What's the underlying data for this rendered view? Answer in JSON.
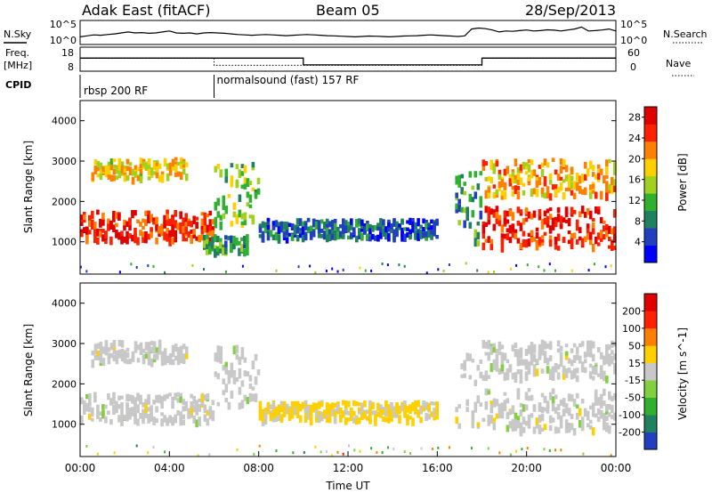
{
  "header": {
    "station": "Adak East (fitACF)",
    "beam": "Beam 05",
    "date": "28/Sep/2013"
  },
  "noise_panel": {
    "left_label": "N.Sky",
    "left_ticks": [
      "10^5",
      "10^0"
    ],
    "right_ticks": [
      "10^5",
      "10^0"
    ],
    "right_label": "N.Search",
    "sky_trace": [
      0.3,
      0.35,
      0.4,
      0.38,
      0.42,
      0.45,
      0.5,
      0.55,
      0.5,
      0.52,
      0.48,
      0.5,
      0.55,
      0.6,
      0.5,
      0.48,
      0.5,
      0.45,
      0.5,
      0.52,
      0.5,
      0.48,
      0.45,
      0.42,
      0.4,
      0.38,
      0.4,
      0.42,
      0.4,
      0.38,
      0.36,
      0.38,
      0.4,
      0.42,
      0.4,
      0.38,
      0.36,
      0.35,
      0.33,
      0.32,
      0.3,
      0.32,
      0.34,
      0.33,
      0.32,
      0.3,
      0.32,
      0.34,
      0.35,
      0.36,
      0.38,
      0.4,
      0.38,
      0.36,
      0.34,
      0.32,
      0.35,
      0.7,
      0.75,
      0.72,
      0.65,
      0.55,
      0.6,
      0.58,
      0.62,
      0.65,
      0.6,
      0.62,
      0.66,
      0.64,
      0.6,
      0.65,
      0.7,
      0.8,
      0.6,
      0.62,
      0.65,
      0.7,
      0.6
    ]
  },
  "freq_panel": {
    "left_label_1": "Freq.",
    "left_label_2": "[MHz]",
    "left_ticks": [
      "18",
      "8"
    ],
    "right_ticks": [
      "60",
      "0"
    ],
    "right_label": "Nave",
    "freq_steps": [
      {
        "t": 0,
        "f": 13.5
      },
      {
        "t": 10,
        "f": 10.2
      },
      {
        "t": 18,
        "f": 13.5
      },
      {
        "t": 24,
        "f": 13.5
      }
    ],
    "nave_steps": [
      {
        "t": 0,
        "n": 0.55
      },
      {
        "t": 6,
        "n": 0.2
      },
      {
        "t": 18,
        "n": 0.55
      },
      {
        "t": 24,
        "n": 0.55
      }
    ]
  },
  "cpid": {
    "label": "CPID",
    "segments": [
      {
        "start": 0,
        "end": 6,
        "name": "rbsp 200 RF"
      },
      {
        "start": 6,
        "end": 24,
        "name": "normalsound (fast) 157 RF"
      }
    ]
  },
  "chart_data": [
    {
      "type": "heatmap",
      "title": "",
      "ylabel": "Slant Range [km]",
      "xlim": [
        0,
        24
      ],
      "ylim": [
        200,
        4500
      ],
      "y_ticks": [
        1000,
        2000,
        3000,
        4000
      ],
      "colorbar": {
        "label": "Power [dB]",
        "ticks": [
          "4",
          "8",
          "12",
          "16",
          "20",
          "24",
          "28"
        ],
        "range": [
          0,
          30
        ],
        "colors": [
          "#0000ff",
          "#2040c0",
          "#208060",
          "#30b030",
          "#a0d020",
          "#ffd000",
          "#ff8000",
          "#ff2000",
          "#e00000"
        ]
      },
      "echo_bands": [
        {
          "t0": 0.0,
          "t1": 6.0,
          "r0": 1100,
          "r1": 1800,
          "level": 26
        },
        {
          "t0": 0.5,
          "t1": 4.8,
          "r0": 2600,
          "r1": 3100,
          "level": 18
        },
        {
          "t0": 6.0,
          "t1": 8.0,
          "r0": 1500,
          "r1": 3000,
          "level": 14
        },
        {
          "t0": 5.5,
          "t1": 7.5,
          "r0": 800,
          "r1": 1200,
          "level": 10
        },
        {
          "t0": 8.0,
          "t1": 16.0,
          "r0": 1150,
          "r1": 1600,
          "level": 6
        },
        {
          "t0": 16.8,
          "t1": 18.0,
          "r0": 1000,
          "r1": 2800,
          "level": 10
        },
        {
          "t0": 18.0,
          "t1": 24.0,
          "r0": 900,
          "r1": 1900,
          "level": 26
        },
        {
          "t0": 18.0,
          "t1": 24.0,
          "r0": 2200,
          "r1": 3100,
          "level": 20
        }
      ]
    },
    {
      "type": "heatmap",
      "title": "",
      "ylabel": "Slant Range [km]",
      "xlabel": "Time UT",
      "xlim": [
        0,
        24
      ],
      "ylim": [
        200,
        4500
      ],
      "x_ticks": [
        "00:00",
        "04:00",
        "08:00",
        "12:00",
        "16:00",
        "20:00",
        "00:00"
      ],
      "y_ticks": [
        1000,
        2000,
        3000,
        4000
      ],
      "colorbar": {
        "label": "Velocity [m s^-1]",
        "ticks": [
          "200",
          "100",
          "50",
          "15",
          "-15",
          "-50",
          "-100",
          "-200"
        ],
        "range": [
          -250,
          250
        ],
        "colors": [
          "#2040c0",
          "#208060",
          "#30b030",
          "#80d040",
          "#c8c8c8",
          "#ffd000",
          "#ff8000",
          "#ff2000",
          "#e00000"
        ]
      },
      "echo_bands": [
        {
          "t0": 0.0,
          "t1": 6.0,
          "r0": 1100,
          "r1": 1800,
          "level": 0
        },
        {
          "t0": 0.5,
          "t1": 4.8,
          "r0": 2600,
          "r1": 3100,
          "level": 0
        },
        {
          "t0": 6.0,
          "t1": 8.0,
          "r0": 1500,
          "r1": 3000,
          "level": 0
        },
        {
          "t0": 8.0,
          "t1": 16.0,
          "r0": 1150,
          "r1": 1600,
          "level": 40
        },
        {
          "t0": 16.8,
          "t1": 18.0,
          "r0": 1000,
          "r1": 2800,
          "level": 0
        },
        {
          "t0": 18.0,
          "t1": 24.0,
          "r0": 900,
          "r1": 1900,
          "level": 0
        },
        {
          "t0": 18.0,
          "t1": 24.0,
          "r0": 2200,
          "r1": 3100,
          "level": 0
        }
      ]
    }
  ]
}
